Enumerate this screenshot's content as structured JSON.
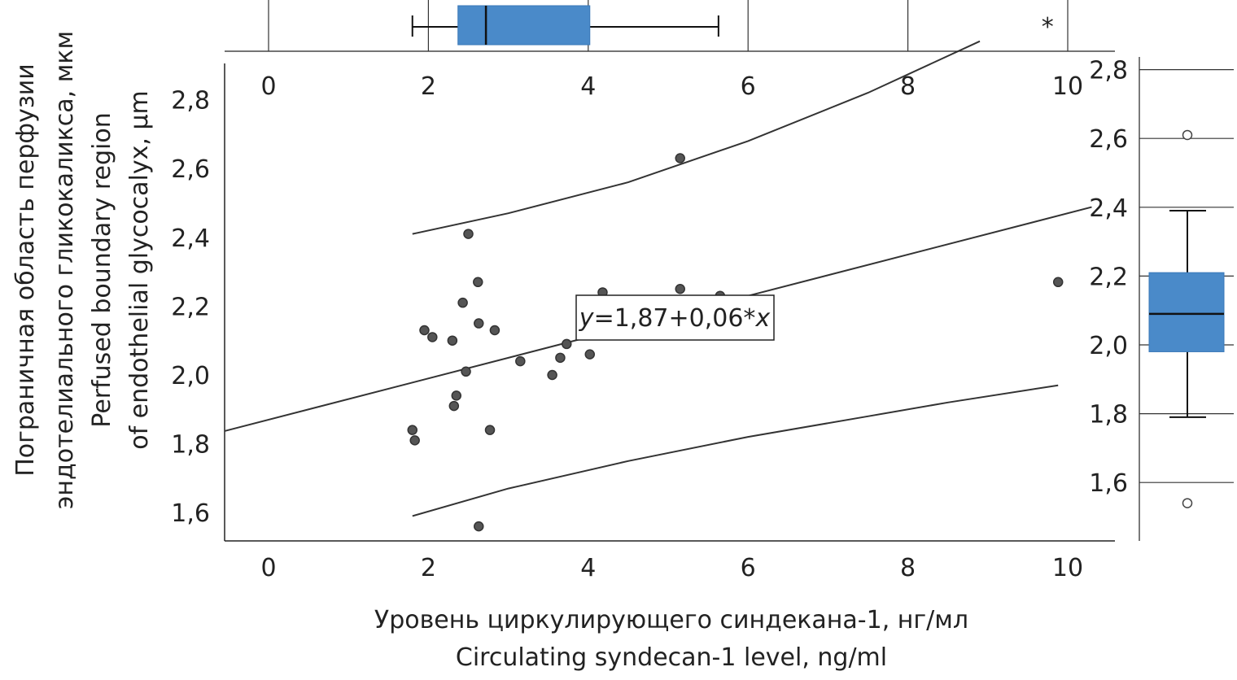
{
  "chart_data": {
    "type": "scatter",
    "xlabel_ru": "Уровень циркулирующего синдекана-1, нг/мл",
    "xlabel_en": "Circulating syndecan-1 level, ng/ml",
    "ylabel_ru_line1": "Пограничная область перфузии",
    "ylabel_ru_line2": "эндотелиального гликокаликса, мкм",
    "ylabel_en_line1": "Perfused boundary region",
    "ylabel_en_line2": "of endothelial glycocalyx, μm",
    "xlim": [
      -0.55,
      10.5
    ],
    "ylim": [
      1.52,
      2.88
    ],
    "x_ticks": [
      "0",
      "2",
      "4",
      "6",
      "8",
      "10"
    ],
    "x_tick_values": [
      0,
      2,
      4,
      6,
      8,
      10
    ],
    "y_ticks": [
      "1,6",
      "1,8",
      "2,0",
      "2,2",
      "2,4",
      "2,6",
      "2,8"
    ],
    "y_tick_values": [
      1.6,
      1.8,
      2.0,
      2.2,
      2.4,
      2.6,
      2.8
    ],
    "equation_y": "y",
    "equation_rest": "=1,87+0,06*",
    "equation_x": "x",
    "regression": {
      "intercept": 1.87,
      "slope": 0.06
    },
    "points": [
      {
        "x": 1.8,
        "y": 1.84
      },
      {
        "x": 1.83,
        "y": 1.81
      },
      {
        "x": 1.95,
        "y": 2.13
      },
      {
        "x": 2.05,
        "y": 2.11
      },
      {
        "x": 2.3,
        "y": 2.1
      },
      {
        "x": 2.32,
        "y": 1.91
      },
      {
        "x": 2.35,
        "y": 1.94
      },
      {
        "x": 2.43,
        "y": 2.21
      },
      {
        "x": 2.47,
        "y": 2.01
      },
      {
        "x": 2.5,
        "y": 2.41
      },
      {
        "x": 2.62,
        "y": 2.27
      },
      {
        "x": 2.63,
        "y": 2.15
      },
      {
        "x": 2.63,
        "y": 1.56
      },
      {
        "x": 2.77,
        "y": 1.84
      },
      {
        "x": 2.83,
        "y": 2.13
      },
      {
        "x": 3.15,
        "y": 2.04
      },
      {
        "x": 3.55,
        "y": 2.0
      },
      {
        "x": 3.65,
        "y": 2.05
      },
      {
        "x": 3.73,
        "y": 2.09
      },
      {
        "x": 4.02,
        "y": 2.06
      },
      {
        "x": 4.18,
        "y": 2.24
      },
      {
        "x": 5.15,
        "y": 2.63
      },
      {
        "x": 5.15,
        "y": 2.25
      },
      {
        "x": 5.65,
        "y": 2.23
      },
      {
        "x": 9.88,
        "y": 2.27
      }
    ],
    "upper_band": [
      [
        1.8,
        2.41
      ],
      [
        3.0,
        2.47
      ],
      [
        4.5,
        2.56
      ],
      [
        6.0,
        2.68
      ],
      [
        7.5,
        2.82
      ],
      [
        8.9,
        2.97
      ]
    ],
    "lower_band": [
      [
        1.8,
        1.59
      ],
      [
        3.0,
        1.67
      ],
      [
        4.5,
        1.75
      ],
      [
        6.0,
        1.82
      ],
      [
        7.5,
        1.88
      ],
      [
        8.5,
        1.92
      ],
      [
        9.88,
        1.97
      ]
    ],
    "boxplot_x": {
      "min": 1.8,
      "q1": 2.37,
      "median": 2.72,
      "q3": 4.02,
      "max": 5.63,
      "extreme_marker": "*",
      "extreme_x": 9.88
    },
    "boxplot_y": {
      "min": 1.79,
      "q1": 1.98,
      "median": 2.09,
      "q3": 2.21,
      "max": 2.39,
      "outliers": [
        2.61,
        1.54
      ]
    },
    "box_fill": "#4A8AC9",
    "point_color": "#555555",
    "line_color": "#333333"
  }
}
